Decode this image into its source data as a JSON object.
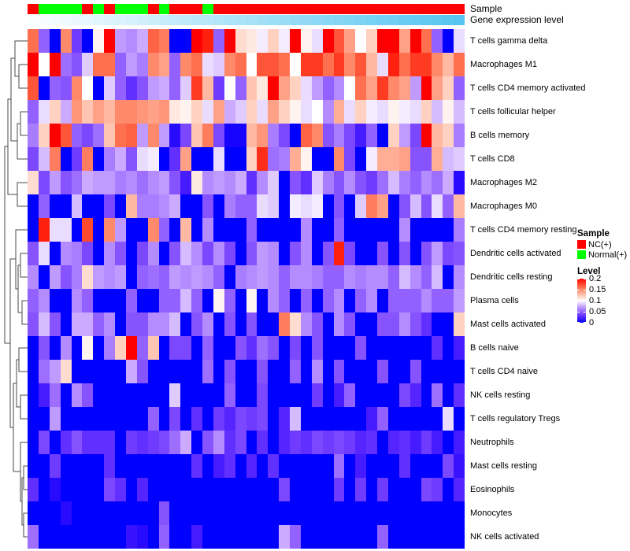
{
  "annotations": {
    "sample_label": "Sample",
    "gene_label": "Gene expression level",
    "gene_gradient": {
      "low_color": "#FBFEFF",
      "high_color": "#55C5F0"
    }
  },
  "legend": {
    "sample_title": "Sample",
    "sample_items": [
      {
        "label": "NC(+)",
        "color": "#FF0000"
      },
      {
        "label": "Normal(+)",
        "color": "#00FF00"
      }
    ],
    "level_title": "Level",
    "level_ticks": [
      "0.2",
      "0.15",
      "0.1",
      "0.05",
      "0"
    ]
  },
  "chart_data": {
    "type": "heatmap",
    "title": "",
    "rows": [
      "T cells gamma delta",
      "Macrophages M1",
      "T cells CD4 memory activated",
      "T cells follicular helper",
      "B cells memory",
      "T cells CD8",
      "Macrophages M2",
      "Macrophages M0",
      "T cells CD4 memory resting",
      "Dendritic cells activated",
      "Dendritic cells resting",
      "Plasma cells",
      "Mast cells activated",
      "B cells naive",
      "T cells CD4 naive",
      "NK cells resting",
      "T cells regulatory  Tregs",
      "Neutrophils",
      "Mast cells resting",
      "Eosinophils",
      "Monocytes",
      "NK cells activated"
    ],
    "n_columns": 40,
    "column_annotations": {
      "sample": [
        "NC(+)",
        "Normal(+)",
        "Normal(+)",
        "Normal(+)",
        "Normal(+)",
        "NC(+)",
        "Normal(+)",
        "NC(+)",
        "Normal(+)",
        "Normal(+)",
        "Normal(+)",
        "NC(+)",
        "Normal(+)",
        "NC(+)",
        "NC(+)",
        "NC(+)",
        "Normal(+)",
        "NC(+)",
        "NC(+)",
        "NC(+)",
        "NC(+)",
        "NC(+)",
        "NC(+)",
        "NC(+)",
        "NC(+)",
        "NC(+)",
        "NC(+)",
        "NC(+)",
        "NC(+)",
        "NC(+)",
        "NC(+)",
        "NC(+)",
        "NC(+)",
        "NC(+)",
        "NC(+)",
        "NC(+)",
        "NC(+)",
        "NC(+)",
        "NC(+)",
        "NC(+)"
      ],
      "gene_expression_level": "sorted gradient, low (white) at left to high (sky blue) at right"
    },
    "scale": {
      "min": 0,
      "max": 0.2,
      "low_color": "#0000FF",
      "mid_color": "#FFFFFF",
      "high_color": "#FF0000"
    },
    "values": [
      [
        0.16,
        0.05,
        0,
        0.15,
        0.035,
        0,
        0.105,
        0.2,
        0.07,
        0.065,
        0.075,
        0.165,
        0.155,
        0,
        0,
        0.2,
        0.19,
        0.05,
        0.2,
        0.115,
        0.11,
        0.095,
        0.12,
        0.095,
        0.2,
        0.105,
        0.09,
        0.2,
        0.17,
        0.14,
        0.1,
        0.12,
        0.2,
        0.2,
        0.14,
        0.2,
        0.16,
        0.05,
        0,
        0.09
      ],
      [
        0.2,
        0.1,
        0.2,
        0.055,
        0.045,
        0.085,
        0.16,
        0.16,
        0.05,
        0.07,
        0.06,
        0.15,
        0.14,
        0.05,
        0.15,
        0.16,
        0.09,
        0.085,
        0.15,
        0.16,
        0.1,
        0.17,
        0.17,
        0.16,
        0.1,
        0.18,
        0.18,
        0.16,
        0.18,
        0.15,
        0.17,
        0.13,
        0.09,
        0.19,
        0.16,
        0.18,
        0.18,
        0.15,
        0.13,
        0.16
      ],
      [
        0.17,
        0,
        0.05,
        0.045,
        0.15,
        0.1,
        0,
        0.085,
        0.05,
        0.03,
        0.045,
        0.07,
        0.075,
        0.05,
        0.085,
        0.18,
        0.13,
        0.035,
        0.1,
        0.05,
        0.125,
        0.11,
        0.2,
        0.14,
        0.12,
        0.09,
        0.07,
        0.05,
        0.065,
        0.1,
        0.16,
        0.14,
        0.18,
        0.15,
        0.14,
        0.07,
        0.2,
        0.14,
        0.12,
        0.05
      ],
      [
        0.05,
        0.09,
        0.12,
        0.075,
        0.145,
        0.125,
        0.14,
        0.13,
        0.15,
        0.15,
        0.145,
        0.14,
        0.145,
        0.11,
        0.105,
        0.12,
        0.09,
        0.14,
        0.075,
        0.085,
        0.12,
        0.09,
        0.14,
        0.12,
        0.105,
        0.09,
        0.1,
        0.065,
        0.135,
        0.09,
        0.12,
        0.095,
        0.09,
        0.105,
        0.095,
        0.09,
        0.12,
        0.08,
        0.105,
        0.08
      ],
      [
        0.06,
        0.12,
        0.2,
        0.17,
        0.05,
        0.04,
        0.055,
        0.125,
        0.16,
        0.165,
        0.07,
        0.15,
        0.07,
        0.01,
        0.04,
        0.125,
        0.155,
        0.04,
        0.005,
        0.005,
        0.13,
        0.145,
        0.06,
        0.04,
        0,
        0.165,
        0.15,
        0.045,
        0.06,
        0.04,
        0.02,
        0.05,
        0,
        0.12,
        0.07,
        0.04,
        0.2,
        0.13,
        0.12,
        0.06
      ],
      [
        0.04,
        0.08,
        0.155,
        0,
        0.035,
        0.155,
        0,
        0.06,
        0.075,
        0.045,
        0.09,
        0.095,
        0,
        0.03,
        0.14,
        0,
        0,
        0.09,
        0,
        0,
        0.12,
        0.185,
        0.055,
        0.06,
        0.135,
        0.105,
        0,
        0,
        0.15,
        0.04,
        0,
        0.095,
        0.135,
        0.135,
        0.14,
        0.045,
        0.045,
        0.135,
        0.08,
        0.085
      ],
      [
        0.115,
        0.04,
        0.07,
        0.045,
        0.055,
        0.075,
        0.07,
        0.07,
        0.06,
        0.065,
        0.055,
        0.065,
        0.07,
        0.045,
        0.02,
        0.11,
        0.065,
        0.07,
        0.065,
        0.075,
        0.03,
        0.065,
        0.085,
        0,
        0.045,
        0.03,
        0.085,
        0.06,
        0.045,
        0.065,
        0.045,
        0.035,
        0.055,
        0.08,
        0.06,
        0.05,
        0.065,
        0.055,
        0.075,
        0.01
      ],
      [
        0,
        0.05,
        0,
        0,
        0.08,
        0,
        0,
        0.04,
        0,
        0.13,
        0.06,
        0.06,
        0.065,
        0.075,
        0,
        0,
        0.045,
        0,
        0.06,
        0.05,
        0.05,
        0.09,
        0.085,
        0,
        0.095,
        0.09,
        0.095,
        0,
        0.045,
        0,
        0.085,
        0.155,
        0.14,
        0,
        0.045,
        0.08,
        0.045,
        0.09,
        0.05,
        0.13
      ],
      [
        0,
        0.19,
        0.09,
        0.09,
        0,
        0.175,
        0,
        0.15,
        0.07,
        0,
        0,
        0.15,
        0.05,
        0,
        0.13,
        0,
        0.065,
        0,
        0,
        0,
        0.05,
        0,
        0,
        0,
        0,
        0.065,
        0,
        0,
        0.05,
        0,
        0,
        0,
        0,
        0,
        0.065,
        0,
        0,
        0,
        0,
        0.06
      ],
      [
        0.045,
        0.09,
        0,
        0.065,
        0.06,
        0.04,
        0,
        0.065,
        0.045,
        0,
        0.04,
        0.065,
        0,
        0.045,
        0.08,
        0.065,
        0.04,
        0.065,
        0.04,
        0,
        0.045,
        0.07,
        0.065,
        0,
        0.045,
        0.065,
        0,
        0.045,
        0.19,
        0.04,
        0,
        0,
        0.045,
        0,
        0.045,
        0,
        0.045,
        0.07,
        0.04,
        0.045
      ],
      [
        0.065,
        0,
        0.07,
        0.045,
        0.06,
        0.115,
        0.07,
        0.065,
        0.07,
        0,
        0.05,
        0.055,
        0.05,
        0.07,
        0.065,
        0.07,
        0.065,
        0.05,
        0,
        0.06,
        0.065,
        0.07,
        0.065,
        0.05,
        0.065,
        0.065,
        0.06,
        0.05,
        0.05,
        0.065,
        0.06,
        0.065,
        0.065,
        0.05,
        0.08,
        0.065,
        0.05,
        0.08,
        0,
        0.065
      ],
      [
        0.05,
        0.065,
        0,
        0,
        0.065,
        0.05,
        0,
        0,
        0,
        0.05,
        0,
        0,
        0.05,
        0.05,
        0.08,
        0.05,
        0,
        0.105,
        0.05,
        0,
        0.105,
        0,
        0.065,
        0.05,
        0,
        0.05,
        0,
        0.05,
        0.065,
        0,
        0.05,
        0.065,
        0,
        0.05,
        0.05,
        0.05,
        0.065,
        0.05,
        0.05,
        0.07
      ],
      [
        0.045,
        0.08,
        0.045,
        0,
        0.075,
        0.075,
        0.05,
        0.065,
        0,
        0.045,
        0.045,
        0.065,
        0.065,
        0.08,
        0,
        0.045,
        0.065,
        0,
        0.045,
        0,
        0.045,
        0,
        0,
        0.155,
        0.115,
        0.065,
        0.045,
        0,
        0.065,
        0.045,
        0,
        0,
        0.045,
        0.045,
        0.065,
        0.045,
        0.03,
        0,
        0,
        0.12
      ],
      [
        0,
        0.045,
        0,
        0.065,
        0,
        0.105,
        0,
        0.06,
        0.12,
        0.2,
        0.05,
        0.125,
        0,
        0.04,
        0.04,
        0,
        0.05,
        0,
        0,
        0.045,
        0.03,
        0.055,
        0.045,
        0,
        0.04,
        0,
        0.045,
        0,
        0,
        0,
        0.045,
        0,
        0,
        0,
        0,
        0,
        0,
        0.03,
        0,
        0.02
      ],
      [
        0,
        0.055,
        0.07,
        0.115,
        0,
        0,
        0,
        0,
        0,
        0.075,
        0.045,
        0,
        0,
        0,
        0,
        0,
        0.055,
        0,
        0.045,
        0,
        0,
        0.045,
        0,
        0,
        0.05,
        0,
        0.065,
        0,
        0.045,
        0,
        0,
        0,
        0.045,
        0,
        0,
        0.045,
        0,
        0,
        0,
        0
      ],
      [
        0,
        0.02,
        0.055,
        0,
        0.065,
        0.045,
        0,
        0,
        0,
        0,
        0,
        0,
        0,
        0.085,
        0,
        0,
        0,
        0,
        0.05,
        0,
        0,
        0.04,
        0,
        0,
        0,
        0,
        0.035,
        0,
        0.02,
        0.05,
        0,
        0,
        0,
        0,
        0.04,
        0.025,
        0,
        0.055,
        0,
        0.03
      ],
      [
        0,
        0,
        0.07,
        0,
        0,
        0,
        0,
        0,
        0,
        0,
        0,
        0.05,
        0,
        0.04,
        0,
        0.03,
        0,
        0.035,
        0.025,
        0.04,
        0.035,
        0.04,
        0,
        0.025,
        0.08,
        0,
        0,
        0,
        0,
        0,
        0,
        0.02,
        0.05,
        0,
        0,
        0,
        0,
        0,
        0.09,
        0
      ],
      [
        0,
        0.04,
        0,
        0.03,
        0.045,
        0.03,
        0.03,
        0.03,
        0,
        0.035,
        0.03,
        0.035,
        0.04,
        0.055,
        0.075,
        0,
        0.045,
        0.065,
        0.03,
        0.04,
        0,
        0.03,
        0,
        0.025,
        0.035,
        0.03,
        0.04,
        0.035,
        0.04,
        0.035,
        0.025,
        0.03,
        0,
        0.025,
        0.03,
        0.02,
        0.035,
        0.02,
        0,
        0.02
      ],
      [
        0,
        0,
        0.035,
        0,
        0,
        0,
        0,
        0.03,
        0,
        0,
        0,
        0,
        0,
        0,
        0,
        0.03,
        0,
        0.02,
        0.03,
        0,
        0.025,
        0,
        0.03,
        0,
        0,
        0,
        0,
        0,
        0.055,
        0,
        0.02,
        0,
        0,
        0,
        0.03,
        0,
        0,
        0,
        0.04,
        0.015
      ],
      [
        0.03,
        0,
        0.01,
        0,
        0,
        0,
        0,
        0.04,
        0.03,
        0,
        0.025,
        0,
        0,
        0,
        0,
        0,
        0,
        0,
        0,
        0,
        0,
        0,
        0,
        0.04,
        0,
        0,
        0,
        0,
        0.035,
        0,
        0.035,
        0,
        0.035,
        0,
        0,
        0,
        0.04,
        0.035,
        0,
        0.025
      ],
      [
        0,
        0,
        0,
        0.01,
        0,
        0,
        0,
        0,
        0,
        0,
        0,
        0,
        0.045,
        0,
        0,
        0,
        0,
        0,
        0,
        0,
        0,
        0,
        0,
        0,
        0,
        0,
        0,
        0,
        0,
        0,
        0,
        0,
        0,
        0,
        0,
        0,
        0,
        0,
        0,
        0
      ],
      [
        0.055,
        0,
        0,
        0,
        0,
        0,
        0,
        0,
        0,
        0.015,
        0.01,
        0,
        0.05,
        0,
        0,
        0.02,
        0,
        0,
        0,
        0,
        0,
        0,
        0,
        0.075,
        0.05,
        0,
        0,
        0,
        0,
        0,
        0,
        0,
        0.05,
        0,
        0,
        0,
        0,
        0,
        0,
        0
      ]
    ]
  }
}
